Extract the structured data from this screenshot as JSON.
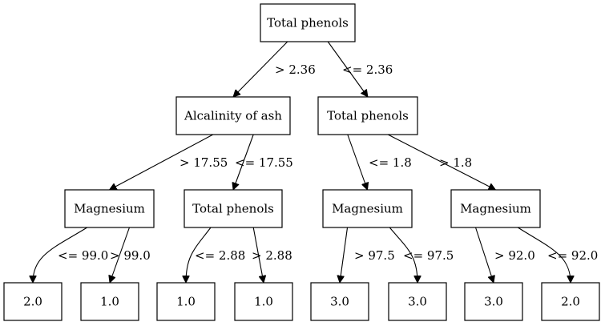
{
  "tree": {
    "nodes": [
      {
        "id": "n0",
        "label": "Total phenols"
      },
      {
        "id": "n1",
        "label": "Alcalinity of ash"
      },
      {
        "id": "n2",
        "label": "Total phenols"
      },
      {
        "id": "n3",
        "label": "Magnesium"
      },
      {
        "id": "n4",
        "label": "Total phenols"
      },
      {
        "id": "n5",
        "label": "Magnesium"
      },
      {
        "id": "n6",
        "label": "Magnesium"
      },
      {
        "id": "n7",
        "label": "2.0"
      },
      {
        "id": "n8",
        "label": "1.0"
      },
      {
        "id": "n9",
        "label": "1.0"
      },
      {
        "id": "n10",
        "label": "1.0"
      },
      {
        "id": "n11",
        "label": "3.0"
      },
      {
        "id": "n12",
        "label": "3.0"
      },
      {
        "id": "n13",
        "label": "3.0"
      },
      {
        "id": "n14",
        "label": "2.0"
      }
    ],
    "edges": [
      {
        "from": "n0",
        "to": "n1",
        "label": "> 2.36"
      },
      {
        "from": "n0",
        "to": "n2",
        "label": "<= 2.36"
      },
      {
        "from": "n1",
        "to": "n3",
        "label": "> 17.55"
      },
      {
        "from": "n1",
        "to": "n4",
        "label": "<= 17.55"
      },
      {
        "from": "n2",
        "to": "n5",
        "label": "<= 1.8"
      },
      {
        "from": "n2",
        "to": "n6",
        "label": "> 1.8"
      },
      {
        "from": "n3",
        "to": "n7",
        "label": "<= 99.0"
      },
      {
        "from": "n3",
        "to": "n8",
        "label": "> 99.0"
      },
      {
        "from": "n4",
        "to": "n9",
        "label": "<= 2.88"
      },
      {
        "from": "n4",
        "to": "n10",
        "label": "> 2.88"
      },
      {
        "from": "n5",
        "to": "n11",
        "label": "> 97.5"
      },
      {
        "from": "n5",
        "to": "n12",
        "label": "<= 97.5"
      },
      {
        "from": "n6",
        "to": "n13",
        "label": "> 92.0"
      },
      {
        "from": "n6",
        "to": "n14",
        "label": "<= 92.0"
      }
    ]
  }
}
